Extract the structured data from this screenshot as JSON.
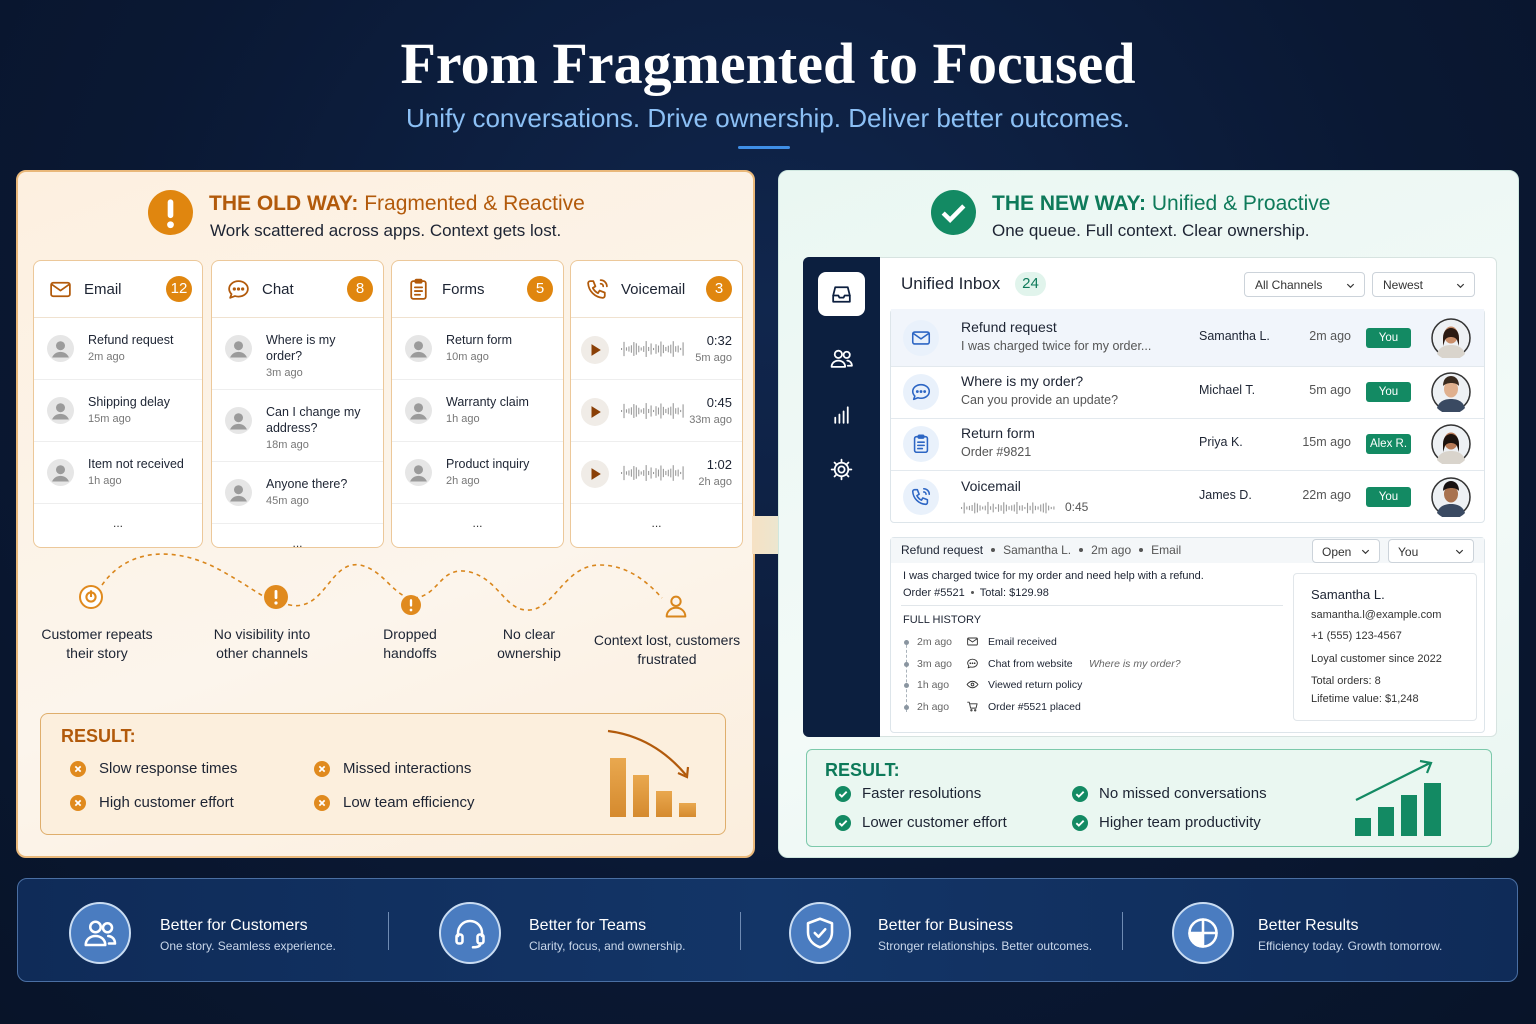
{
  "header": {
    "title": "From Fragmented to Focused",
    "subtitle": "Unify conversations. Drive ownership. Deliver better outcomes."
  },
  "old_way": {
    "label": "THE OLD WAY:",
    "heading": "Fragmented & Reactive",
    "description": "Work scattered across apps. Context gets lost.",
    "channels": [
      {
        "name": "Email",
        "count": 12,
        "items": [
          {
            "title": "Refund request",
            "time": "2m ago"
          },
          {
            "title": "Shipping delay",
            "time": "15m ago"
          },
          {
            "title": "Item not received",
            "time": "1h ago"
          }
        ],
        "more": "..."
      },
      {
        "name": "Chat",
        "count": 8,
        "items": [
          {
            "title": "Where is my order?",
            "time": "3m ago"
          },
          {
            "title": "Can I change my address?",
            "time": "18m ago"
          },
          {
            "title": "Anyone there?",
            "time": "45m ago"
          }
        ],
        "more": "..."
      },
      {
        "name": "Forms",
        "count": 5,
        "items": [
          {
            "title": "Return form",
            "time": "10m ago"
          },
          {
            "title": "Warranty claim",
            "time": "1h ago"
          },
          {
            "title": "Product inquiry",
            "time": "2h ago"
          }
        ],
        "more": "..."
      },
      {
        "name": "Voicemail",
        "count": 3,
        "items": [
          {
            "duration": "0:32",
            "time": "5m ago"
          },
          {
            "duration": "0:45",
            "time": "33m ago"
          },
          {
            "duration": "1:02",
            "time": "2h ago"
          }
        ],
        "more": "..."
      }
    ],
    "pain_points": [
      "Customer repeats their story",
      "No visibility into other channels",
      "Dropped handoffs",
      "No clear ownership",
      "Context lost, customers frustrated"
    ],
    "result": {
      "label": "RESULT:",
      "items": [
        "Slow response times",
        "High customer effort",
        "Missed interactions",
        "Low team efficiency"
      ]
    }
  },
  "new_way": {
    "label": "THE NEW WAY:",
    "heading": "Unified & Proactive",
    "description": "One queue. Full context. Clear ownership.",
    "inbox": {
      "title": "Unified Inbox",
      "count": 24,
      "filters": [
        "All Channels",
        "Newest"
      ],
      "conversations": [
        {
          "title": "Refund request",
          "preview": "I was charged twice for my order...",
          "customer": "Samantha L.",
          "time": "2m ago",
          "owner": "You"
        },
        {
          "title": "Where is my order?",
          "preview": "Can you provide an update?",
          "customer": "Michael T.",
          "time": "5m ago",
          "owner": "You"
        },
        {
          "title": "Return form",
          "preview": "Order #9821",
          "customer": "Priya K.",
          "time": "15m ago",
          "owner": "Alex R."
        },
        {
          "title": "Voicemail",
          "preview": "0:45",
          "customer": "James D.",
          "time": "22m ago",
          "owner": "You"
        }
      ]
    },
    "detail": {
      "subject": "Refund request",
      "customer": "Samantha L.",
      "time": "2m ago",
      "channel": "Email",
      "status": "Open",
      "assignee": "You",
      "message": "I was charged twice for my order and need help with a refund.",
      "order": "Order #5521",
      "total": "Total: $129.98",
      "history_label": "FULL HISTORY",
      "history": [
        {
          "time": "2m ago",
          "event": "Email received"
        },
        {
          "time": "3m ago",
          "event": "Chat from website",
          "note": "Where is my order?"
        },
        {
          "time": "1h ago",
          "event": "Viewed return policy"
        },
        {
          "time": "2h ago",
          "event": "Order #5521 placed"
        }
      ],
      "profile": {
        "name": "Samantha L.",
        "email": "samantha.l@example.com",
        "phone": "+1 (555) 123-4567",
        "since": "Loyal customer since 2022",
        "orders": "Total orders: 8",
        "value": "Lifetime value: $1,248"
      }
    },
    "result": {
      "label": "RESULT:",
      "items": [
        "Faster resolutions",
        "Lower customer effort",
        "No missed conversations",
        "Higher team productivity"
      ]
    }
  },
  "benefits": [
    {
      "title": "Better for Customers",
      "description": "One story. Seamless experience."
    },
    {
      "title": "Better for Teams",
      "description": "Clarity, focus, and ownership."
    },
    {
      "title": "Better for Business",
      "description": "Stronger relationships. Better outcomes."
    },
    {
      "title": "Better Results",
      "description": "Efficiency today. Growth tomorrow."
    }
  ]
}
